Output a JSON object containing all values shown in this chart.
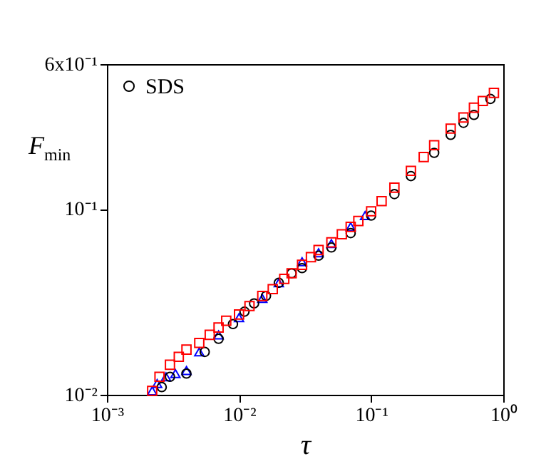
{
  "chart_data": {
    "type": "scatter",
    "xlabel": "τ",
    "ylabel": "F$_{min}$",
    "log": "xy",
    "grid": false,
    "legend": "top left",
    "xlim": [
      0.001,
      1
    ],
    "xticks": [
      {
        "value": 0.001,
        "label": "10⁻³"
      },
      {
        "value": 0.01,
        "label": "10⁻²"
      },
      {
        "value": 0.1,
        "label": "10⁻¹"
      },
      {
        "value": 1,
        "label": "10⁰"
      }
    ],
    "ylim": [
      0.01,
      0.6
    ],
    "yticks": [
      {
        "value": 0.01,
        "label": "10⁻²"
      },
      {
        "value": 0.1,
        "label": "10⁻¹"
      },
      {
        "value": 0.6,
        "label": "6x10⁻¹"
      }
    ],
    "series": [
      {
        "color": "#0000ff",
        "marker": "triangle",
        "x": [
          0.0022,
          0.0024,
          0.0028,
          0.0033,
          0.004,
          0.005,
          0.007,
          0.01,
          0.015,
          0.02,
          0.03,
          0.04,
          0.05,
          0.07,
          0.09
        ],
        "values": [
          0.0105,
          0.0115,
          0.0125,
          0.013,
          0.0135,
          0.017,
          0.021,
          0.026,
          0.033,
          0.04,
          0.052,
          0.058,
          0.065,
          0.08,
          0.092
        ]
      },
      {
        "name": "SDS",
        "color": "#000000",
        "marker": "circle",
        "x": [
          0.0026,
          0.003,
          0.004,
          0.0055,
          0.007,
          0.009,
          0.011,
          0.013,
          0.016,
          0.02,
          0.025,
          0.03,
          0.04,
          0.05,
          0.07,
          0.1,
          0.15,
          0.2,
          0.3,
          0.4,
          0.5,
          0.6,
          0.8
        ],
        "values": [
          0.011,
          0.0125,
          0.013,
          0.017,
          0.02,
          0.024,
          0.028,
          0.031,
          0.034,
          0.04,
          0.045,
          0.048,
          0.056,
          0.062,
          0.074,
          0.092,
          0.12,
          0.15,
          0.2,
          0.25,
          0.29,
          0.32,
          0.39
        ]
      },
      {
        "color": "#ff0000",
        "marker": "square",
        "x": [
          0.0022,
          0.0025,
          0.003,
          0.0035,
          0.004,
          0.005,
          0.006,
          0.007,
          0.008,
          0.01,
          0.012,
          0.015,
          0.018,
          0.022,
          0.025,
          0.03,
          0.035,
          0.04,
          0.05,
          0.06,
          0.07,
          0.08,
          0.1,
          0.12,
          0.15,
          0.2,
          0.25,
          0.3,
          0.4,
          0.5,
          0.6,
          0.7,
          0.85
        ],
        "values": [
          0.0105,
          0.0125,
          0.0145,
          0.016,
          0.0175,
          0.019,
          0.021,
          0.023,
          0.025,
          0.027,
          0.03,
          0.034,
          0.037,
          0.042,
          0.045,
          0.05,
          0.055,
          0.06,
          0.066,
          0.073,
          0.08,
          0.086,
          0.097,
          0.11,
          0.13,
          0.16,
          0.19,
          0.22,
          0.27,
          0.31,
          0.35,
          0.38,
          0.42
        ]
      }
    ]
  }
}
